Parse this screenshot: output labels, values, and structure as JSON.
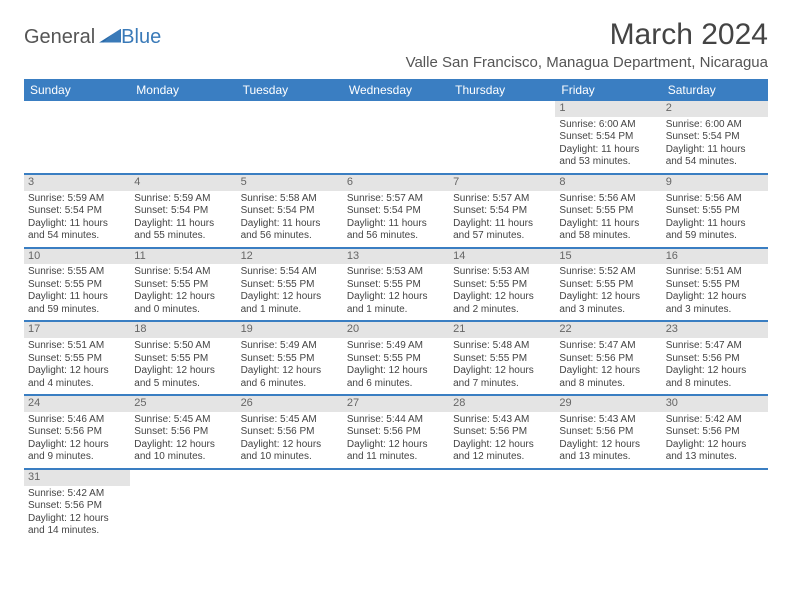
{
  "logo": {
    "general": "General",
    "blue": "Blue"
  },
  "title": "March 2024",
  "location": "Valle San Francisco, Managua Department, Nicaragua",
  "colors": {
    "header_bg": "#3a7ec2",
    "header_fg": "#ffffff",
    "daybar": "#e4e4e4"
  },
  "dayHeaders": [
    "Sunday",
    "Monday",
    "Tuesday",
    "Wednesday",
    "Thursday",
    "Friday",
    "Saturday"
  ],
  "weeks": [
    [
      null,
      null,
      null,
      null,
      null,
      {
        "n": "1",
        "sr": "Sunrise: 6:00 AM",
        "ss": "Sunset: 5:54 PM",
        "d1": "Daylight: 11 hours",
        "d2": "and 53 minutes."
      },
      {
        "n": "2",
        "sr": "Sunrise: 6:00 AM",
        "ss": "Sunset: 5:54 PM",
        "d1": "Daylight: 11 hours",
        "d2": "and 54 minutes."
      }
    ],
    [
      {
        "n": "3",
        "sr": "Sunrise: 5:59 AM",
        "ss": "Sunset: 5:54 PM",
        "d1": "Daylight: 11 hours",
        "d2": "and 54 minutes."
      },
      {
        "n": "4",
        "sr": "Sunrise: 5:59 AM",
        "ss": "Sunset: 5:54 PM",
        "d1": "Daylight: 11 hours",
        "d2": "and 55 minutes."
      },
      {
        "n": "5",
        "sr": "Sunrise: 5:58 AM",
        "ss": "Sunset: 5:54 PM",
        "d1": "Daylight: 11 hours",
        "d2": "and 56 minutes."
      },
      {
        "n": "6",
        "sr": "Sunrise: 5:57 AM",
        "ss": "Sunset: 5:54 PM",
        "d1": "Daylight: 11 hours",
        "d2": "and 56 minutes."
      },
      {
        "n": "7",
        "sr": "Sunrise: 5:57 AM",
        "ss": "Sunset: 5:54 PM",
        "d1": "Daylight: 11 hours",
        "d2": "and 57 minutes."
      },
      {
        "n": "8",
        "sr": "Sunrise: 5:56 AM",
        "ss": "Sunset: 5:55 PM",
        "d1": "Daylight: 11 hours",
        "d2": "and 58 minutes."
      },
      {
        "n": "9",
        "sr": "Sunrise: 5:56 AM",
        "ss": "Sunset: 5:55 PM",
        "d1": "Daylight: 11 hours",
        "d2": "and 59 minutes."
      }
    ],
    [
      {
        "n": "10",
        "sr": "Sunrise: 5:55 AM",
        "ss": "Sunset: 5:55 PM",
        "d1": "Daylight: 11 hours",
        "d2": "and 59 minutes."
      },
      {
        "n": "11",
        "sr": "Sunrise: 5:54 AM",
        "ss": "Sunset: 5:55 PM",
        "d1": "Daylight: 12 hours",
        "d2": "and 0 minutes."
      },
      {
        "n": "12",
        "sr": "Sunrise: 5:54 AM",
        "ss": "Sunset: 5:55 PM",
        "d1": "Daylight: 12 hours",
        "d2": "and 1 minute."
      },
      {
        "n": "13",
        "sr": "Sunrise: 5:53 AM",
        "ss": "Sunset: 5:55 PM",
        "d1": "Daylight: 12 hours",
        "d2": "and 1 minute."
      },
      {
        "n": "14",
        "sr": "Sunrise: 5:53 AM",
        "ss": "Sunset: 5:55 PM",
        "d1": "Daylight: 12 hours",
        "d2": "and 2 minutes."
      },
      {
        "n": "15",
        "sr": "Sunrise: 5:52 AM",
        "ss": "Sunset: 5:55 PM",
        "d1": "Daylight: 12 hours",
        "d2": "and 3 minutes."
      },
      {
        "n": "16",
        "sr": "Sunrise: 5:51 AM",
        "ss": "Sunset: 5:55 PM",
        "d1": "Daylight: 12 hours",
        "d2": "and 3 minutes."
      }
    ],
    [
      {
        "n": "17",
        "sr": "Sunrise: 5:51 AM",
        "ss": "Sunset: 5:55 PM",
        "d1": "Daylight: 12 hours",
        "d2": "and 4 minutes."
      },
      {
        "n": "18",
        "sr": "Sunrise: 5:50 AM",
        "ss": "Sunset: 5:55 PM",
        "d1": "Daylight: 12 hours",
        "d2": "and 5 minutes."
      },
      {
        "n": "19",
        "sr": "Sunrise: 5:49 AM",
        "ss": "Sunset: 5:55 PM",
        "d1": "Daylight: 12 hours",
        "d2": "and 6 minutes."
      },
      {
        "n": "20",
        "sr": "Sunrise: 5:49 AM",
        "ss": "Sunset: 5:55 PM",
        "d1": "Daylight: 12 hours",
        "d2": "and 6 minutes."
      },
      {
        "n": "21",
        "sr": "Sunrise: 5:48 AM",
        "ss": "Sunset: 5:55 PM",
        "d1": "Daylight: 12 hours",
        "d2": "and 7 minutes."
      },
      {
        "n": "22",
        "sr": "Sunrise: 5:47 AM",
        "ss": "Sunset: 5:56 PM",
        "d1": "Daylight: 12 hours",
        "d2": "and 8 minutes."
      },
      {
        "n": "23",
        "sr": "Sunrise: 5:47 AM",
        "ss": "Sunset: 5:56 PM",
        "d1": "Daylight: 12 hours",
        "d2": "and 8 minutes."
      }
    ],
    [
      {
        "n": "24",
        "sr": "Sunrise: 5:46 AM",
        "ss": "Sunset: 5:56 PM",
        "d1": "Daylight: 12 hours",
        "d2": "and 9 minutes."
      },
      {
        "n": "25",
        "sr": "Sunrise: 5:45 AM",
        "ss": "Sunset: 5:56 PM",
        "d1": "Daylight: 12 hours",
        "d2": "and 10 minutes."
      },
      {
        "n": "26",
        "sr": "Sunrise: 5:45 AM",
        "ss": "Sunset: 5:56 PM",
        "d1": "Daylight: 12 hours",
        "d2": "and 10 minutes."
      },
      {
        "n": "27",
        "sr": "Sunrise: 5:44 AM",
        "ss": "Sunset: 5:56 PM",
        "d1": "Daylight: 12 hours",
        "d2": "and 11 minutes."
      },
      {
        "n": "28",
        "sr": "Sunrise: 5:43 AM",
        "ss": "Sunset: 5:56 PM",
        "d1": "Daylight: 12 hours",
        "d2": "and 12 minutes."
      },
      {
        "n": "29",
        "sr": "Sunrise: 5:43 AM",
        "ss": "Sunset: 5:56 PM",
        "d1": "Daylight: 12 hours",
        "d2": "and 13 minutes."
      },
      {
        "n": "30",
        "sr": "Sunrise: 5:42 AM",
        "ss": "Sunset: 5:56 PM",
        "d1": "Daylight: 12 hours",
        "d2": "and 13 minutes."
      }
    ],
    [
      {
        "n": "31",
        "sr": "Sunrise: 5:42 AM",
        "ss": "Sunset: 5:56 PM",
        "d1": "Daylight: 12 hours",
        "d2": "and 14 minutes."
      },
      null,
      null,
      null,
      null,
      null,
      null
    ]
  ]
}
